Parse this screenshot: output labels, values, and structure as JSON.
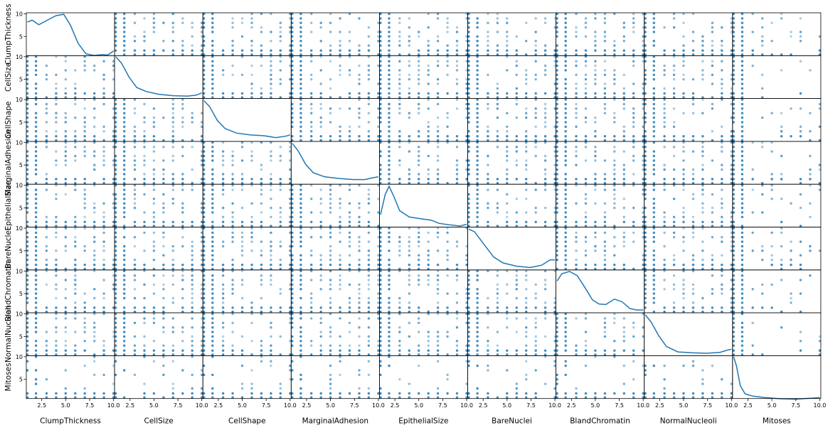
{
  "chart_data": {
    "type": "scatter_matrix",
    "variables": [
      "ClumpThickness",
      "CellSize",
      "CellShape",
      "MarginalAdhesion",
      "EpithelialSize",
      "BareNuclei",
      "BlandChromatin",
      "NormalNucleoli",
      "Mitoses"
    ],
    "diagonal": "kde",
    "axis_range": [
      1,
      10
    ],
    "x_tick_labels": [
      "2.5",
      "5.0",
      "7.5",
      "10.0"
    ],
    "x_ticks": [
      2.5,
      5.0,
      7.5,
      10.0
    ],
    "y_tick_labels": [
      "5",
      "10"
    ],
    "y_ticks": [
      5,
      10
    ],
    "point_color": "#1f77b4",
    "line_color": "#1f77b4",
    "kde": [
      [
        [
          1,
          8.2
        ],
        [
          1.5,
          8.6
        ],
        [
          2.2,
          7.6
        ],
        [
          3,
          8.5
        ],
        [
          4,
          9.6
        ],
        [
          4.8,
          9.9
        ],
        [
          5.5,
          7.5
        ],
        [
          6.3,
          3.5
        ],
        [
          7.1,
          1.2
        ],
        [
          8,
          0.8
        ],
        [
          8.8,
          1.0
        ],
        [
          9.4,
          0.9
        ],
        [
          10,
          1.8
        ]
      ],
      [
        [
          1,
          10
        ],
        [
          1.6,
          8.6
        ],
        [
          2.4,
          5.5
        ],
        [
          3.2,
          3.2
        ],
        [
          4.2,
          2.3
        ],
        [
          5.5,
          1.7
        ],
        [
          7,
          1.4
        ],
        [
          8.5,
          1.3
        ],
        [
          9.4,
          1.5
        ],
        [
          10,
          2.0
        ]
      ],
      [
        [
          1,
          9.8
        ],
        [
          1.6,
          8.4
        ],
        [
          2.4,
          5.4
        ],
        [
          3.2,
          3.6
        ],
        [
          4.4,
          2.6
        ],
        [
          5.8,
          2.2
        ],
        [
          7.3,
          2.0
        ],
        [
          8.5,
          1.6
        ],
        [
          9.5,
          1.9
        ],
        [
          10,
          2.2
        ]
      ],
      [
        [
          1,
          9.8
        ],
        [
          1.6,
          8.2
        ],
        [
          2.4,
          5.2
        ],
        [
          3.2,
          3.3
        ],
        [
          4.4,
          2.4
        ],
        [
          6,
          2.0
        ],
        [
          7.4,
          1.8
        ],
        [
          8.6,
          1.8
        ],
        [
          9.4,
          2.2
        ],
        [
          10,
          2.4
        ]
      ],
      [
        [
          1,
          3.5
        ],
        [
          1.5,
          8.0
        ],
        [
          1.9,
          9.8
        ],
        [
          2.4,
          7.5
        ],
        [
          3,
          4.4
        ],
        [
          4,
          3.0
        ],
        [
          5.2,
          2.6
        ],
        [
          6.3,
          2.3
        ],
        [
          7.1,
          1.6
        ],
        [
          8.1,
          1.3
        ],
        [
          9.3,
          1.0
        ],
        [
          10,
          1.4
        ]
      ],
      [
        [
          1,
          9.8
        ],
        [
          1.6,
          9.2
        ],
        [
          2.6,
          6.4
        ],
        [
          3.6,
          3.6
        ],
        [
          4.6,
          2.3
        ],
        [
          6,
          1.6
        ],
        [
          7.4,
          1.3
        ],
        [
          8.6,
          1.8
        ],
        [
          9.5,
          3.0
        ],
        [
          10,
          3.0
        ]
      ],
      [
        [
          1,
          7.8
        ],
        [
          1.5,
          9.4
        ],
        [
          2.3,
          9.9
        ],
        [
          3.1,
          9.0
        ],
        [
          3.9,
          6.4
        ],
        [
          4.7,
          3.6
        ],
        [
          5.4,
          2.7
        ],
        [
          6.1,
          2.6
        ],
        [
          7,
          3.8
        ],
        [
          7.8,
          3.2
        ],
        [
          8.6,
          1.7
        ],
        [
          9.3,
          1.4
        ],
        [
          10,
          1.4
        ]
      ],
      [
        [
          1,
          9.8
        ],
        [
          1.6,
          8.2
        ],
        [
          2.4,
          5.2
        ],
        [
          3.2,
          2.8
        ],
        [
          4.4,
          1.6
        ],
        [
          6,
          1.4
        ],
        [
          7.4,
          1.3
        ],
        [
          8.8,
          1.5
        ],
        [
          9.6,
          2.0
        ],
        [
          10,
          2.2
        ]
      ],
      [
        [
          1,
          10
        ],
        [
          1.3,
          8
        ],
        [
          1.7,
          3.6
        ],
        [
          2.2,
          1.8
        ],
        [
          3,
          1.3
        ],
        [
          4.2,
          1.0
        ],
        [
          6,
          0.7
        ],
        [
          7.5,
          0.6
        ],
        [
          8.7,
          0.8
        ],
        [
          9.6,
          0.9
        ],
        [
          10,
          1.0
        ]
      ]
    ]
  }
}
